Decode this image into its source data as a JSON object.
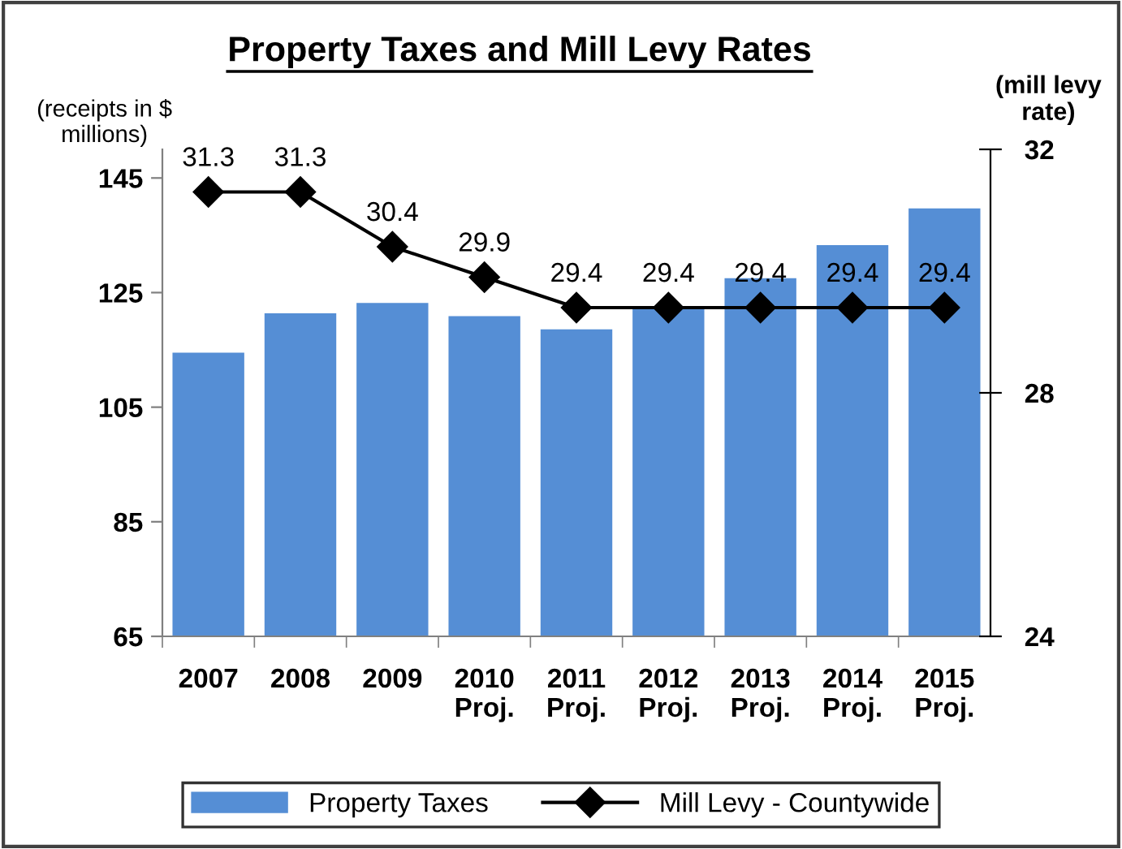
{
  "chart_data": {
    "type": "bar",
    "title": "Property Taxes and Mill Levy Rates",
    "ylabel": "(receipts in $\nmillions)",
    "y2label": "(mill levy\nrate)",
    "categories": [
      "2007",
      "2008",
      "2009",
      "2010\nProj.",
      "2011\nProj.",
      "2012\nProj.",
      "2013\nProj.",
      "2014\nProj.",
      "2015\nProj."
    ],
    "series": [
      {
        "name": "Property Taxes",
        "color": "#558ed5",
        "values": [
          114.5,
          121.4,
          123.2,
          120.9,
          118.6,
          122.6,
          127.5,
          133.3,
          139.7
        ]
      },
      {
        "name": "Mill Levy - Countywide",
        "type": "line",
        "axis": "y2",
        "color": "#000000",
        "marker": "diamond",
        "values": [
          31.3,
          31.3,
          30.4,
          29.9,
          29.4,
          29.4,
          29.4,
          29.4,
          29.4
        ],
        "data_labels": true
      }
    ],
    "ylim": [
      65,
      150
    ],
    "yticks": [
      65,
      85,
      105,
      125,
      145
    ],
    "y2lim": [
      24,
      32
    ],
    "y2ticks": [
      24,
      28,
      32
    ],
    "grid": false,
    "legend": "bottom"
  }
}
